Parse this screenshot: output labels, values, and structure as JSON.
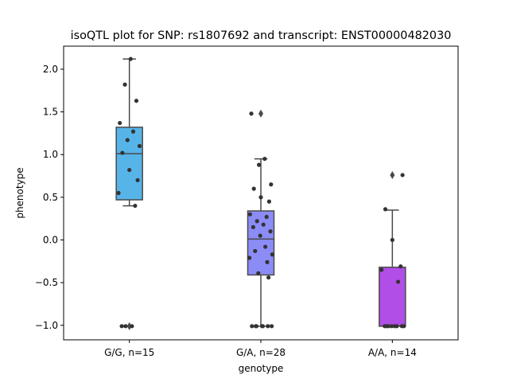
{
  "chart_data": {
    "type": "box",
    "title": "isoQTL plot for SNP: rs1807692 and transcript: ENST00000482030",
    "xlabel": "genotype",
    "ylabel": "phenotype",
    "ylim": [
      -1.17,
      2.27
    ],
    "yticks": [
      -1.0,
      -0.5,
      0.0,
      0.5,
      1.0,
      1.5,
      2.0
    ],
    "ytick_labels": [
      "−1.0",
      "−0.5",
      "0.0",
      "0.5",
      "1.0",
      "1.5",
      "2.0"
    ],
    "categories": [
      "G/G, n=15",
      "G/A, n=28",
      "A/A, n=14"
    ],
    "boxes": [
      {
        "category": "G/G, n=15",
        "color": "#56b4e9",
        "q1": 0.47,
        "median": 1.01,
        "q3": 1.32,
        "whisker_low": 0.4,
        "whisker_high": 2.12,
        "outliers": [
          -1.01
        ]
      },
      {
        "category": "G/A, n=28",
        "color": "#8c8cf7",
        "q1": -0.41,
        "median": 0.01,
        "q3": 0.34,
        "whisker_low": -1.01,
        "whisker_high": 0.95,
        "outliers": [
          1.48
        ]
      },
      {
        "category": "A/A, n=14",
        "color": "#b24ee8",
        "q1": -1.01,
        "median": -1.01,
        "q3": -0.32,
        "whisker_low": -1.01,
        "whisker_high": 0.35,
        "outliers": [
          0.76
        ]
      }
    ],
    "points": [
      {
        "category": "G/G, n=15",
        "values": [
          2.12,
          1.82,
          1.63,
          1.37,
          1.27,
          1.17,
          1.1,
          1.02,
          0.82,
          0.7,
          0.55,
          0.4,
          -1.01,
          -1.01,
          -1.01
        ]
      },
      {
        "category": "G/A, n=28",
        "values": [
          1.48,
          0.95,
          0.88,
          0.65,
          0.6,
          0.5,
          0.45,
          0.3,
          0.27,
          0.22,
          0.18,
          0.15,
          0.1,
          0.05,
          -0.08,
          -0.13,
          -0.17,
          -0.21,
          -0.26,
          -0.39,
          -0.44,
          -1.01,
          -1.01,
          -1.01,
          -1.01,
          -1.01,
          -1.01,
          -1.01
        ]
      },
      {
        "category": "A/A, n=14",
        "values": [
          0.76,
          0.36,
          0.0,
          -0.31,
          -0.35,
          -0.49,
          -1.01,
          -1.01,
          -1.01,
          -1.01,
          -1.01,
          -1.01,
          -1.01,
          -1.01
        ]
      }
    ]
  }
}
